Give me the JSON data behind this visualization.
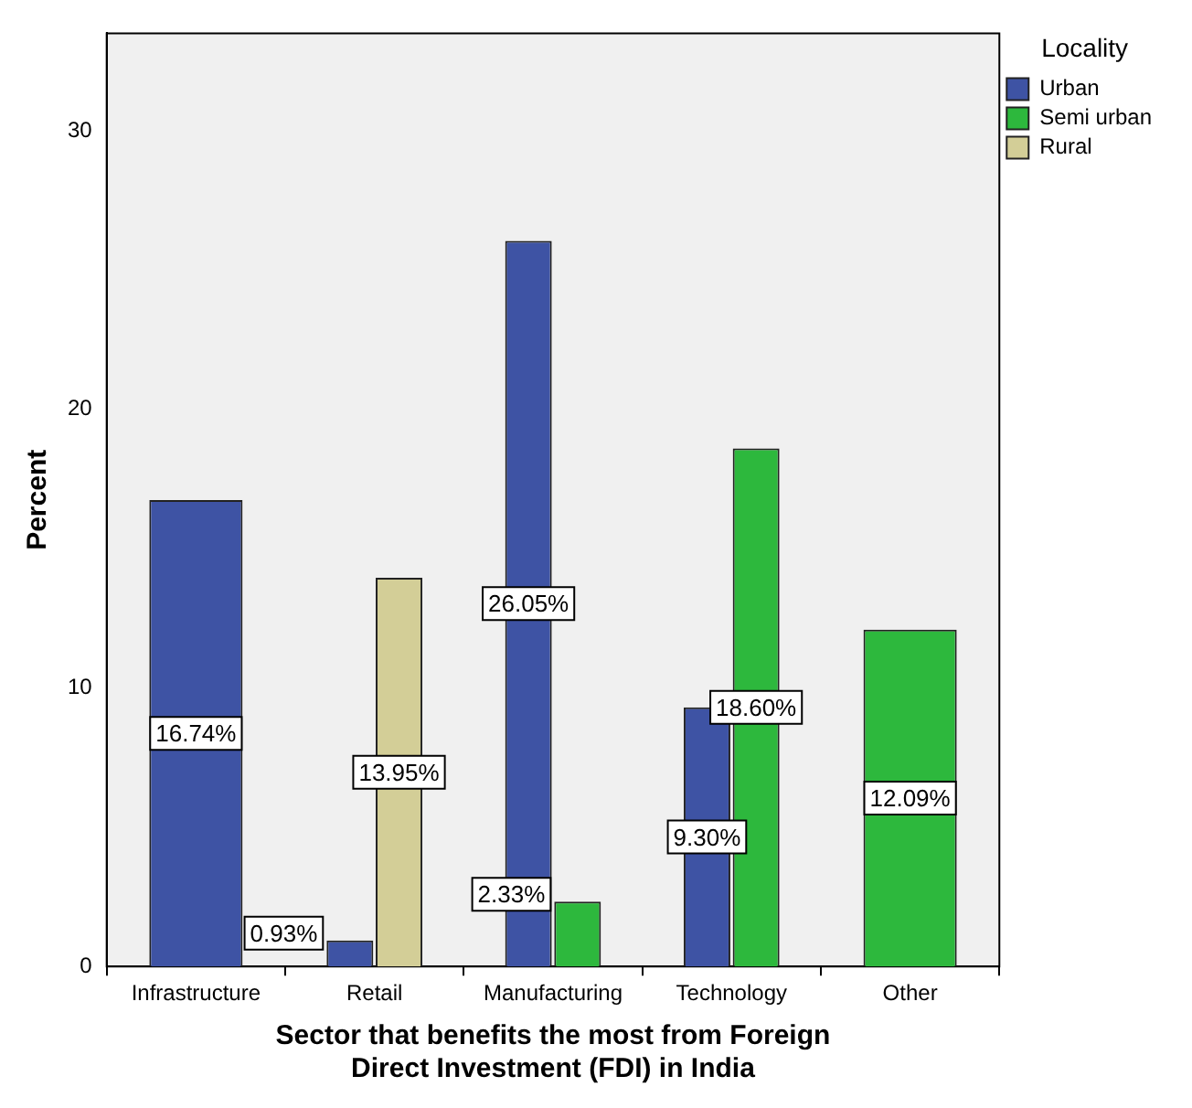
{
  "chart_data": {
    "type": "bar",
    "xlabel": "Sector that benefits the most from Foreign Direct Investment (FDI) in India",
    "ylabel": "Percent",
    "legend_title": "Locality",
    "categories": [
      "Infrastructure",
      "Retail",
      "Manufacturing",
      "Technology",
      "Other"
    ],
    "series": [
      {
        "name": "Urban",
        "color": "#3e53a4",
        "values": [
          16.74,
          0.93,
          26.05,
          9.3,
          null
        ]
      },
      {
        "name": "Semi urban",
        "color": "#2db83d",
        "values": [
          null,
          null,
          2.33,
          18.6,
          12.09
        ]
      },
      {
        "name": "Rural",
        "color": "#d3ce97",
        "values": [
          null,
          13.95,
          null,
          null,
          null
        ]
      }
    ],
    "value_labels": [
      [
        "16.74%",
        "0.93%",
        "26.05%",
        "9.30%",
        null
      ],
      [
        null,
        null,
        "2.33%",
        "18.60%",
        "12.09%"
      ],
      [
        null,
        "13.95%",
        null,
        null,
        null
      ]
    ],
    "ylim": [
      0,
      33.5
    ],
    "yticks": [
      0,
      10,
      20,
      30
    ],
    "grid": false,
    "legend": "top right"
  }
}
